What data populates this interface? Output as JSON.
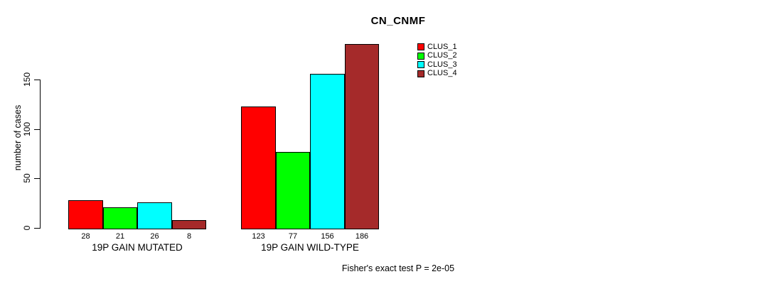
{
  "window": {
    "background": "#FFFFFF"
  },
  "chart_data": {
    "type": "bar",
    "title": "CN_CNMF",
    "ylabel": "number of cases",
    "xlabel": "",
    "yticks": [
      0,
      50,
      100,
      150
    ],
    "ylim": [
      0,
      190
    ],
    "grid": false,
    "legend_position": "top-right",
    "categories": [
      "19P GAIN MUTATED",
      "19P GAIN WILD-TYPE"
    ],
    "series": [
      {
        "name": "CLUS_1",
        "color": "#FF0000",
        "values": [
          28,
          123
        ]
      },
      {
        "name": "CLUS_2",
        "color": "#00FF00",
        "values": [
          21,
          77
        ]
      },
      {
        "name": "CLUS_3",
        "color": "#00FFFF",
        "values": [
          26,
          156
        ]
      },
      {
        "name": "CLUS_4",
        "color": "#A52A2A",
        "values": [
          8,
          186
        ]
      }
    ],
    "bar_value_labels": [
      [
        28,
        21,
        26,
        8
      ],
      [
        123,
        77,
        156,
        186
      ]
    ],
    "annotation": "Fisher's exact test P = 2e-05",
    "axis_color": "#000000",
    "text_color": "#000000"
  }
}
